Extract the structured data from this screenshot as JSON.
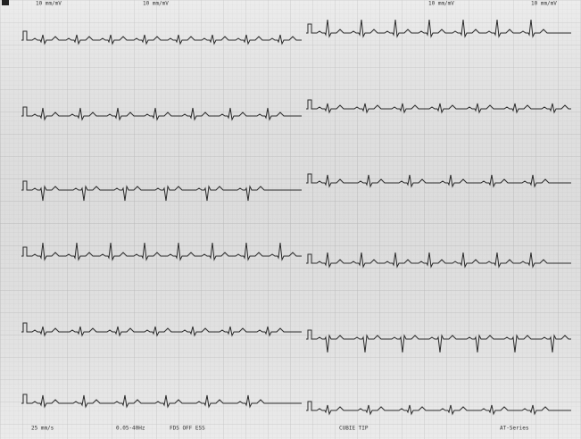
{
  "header": {
    "labels": [
      "10 mm/mV",
      "10 mm/mV",
      "10 mm/mV",
      "10 mm/mV"
    ]
  },
  "footer": {
    "labels": [
      "25 mm/s",
      "0.05-40Hz",
      "FDS OFF ESS",
      "CUBIE TIP",
      "AT-Series"
    ]
  }
}
